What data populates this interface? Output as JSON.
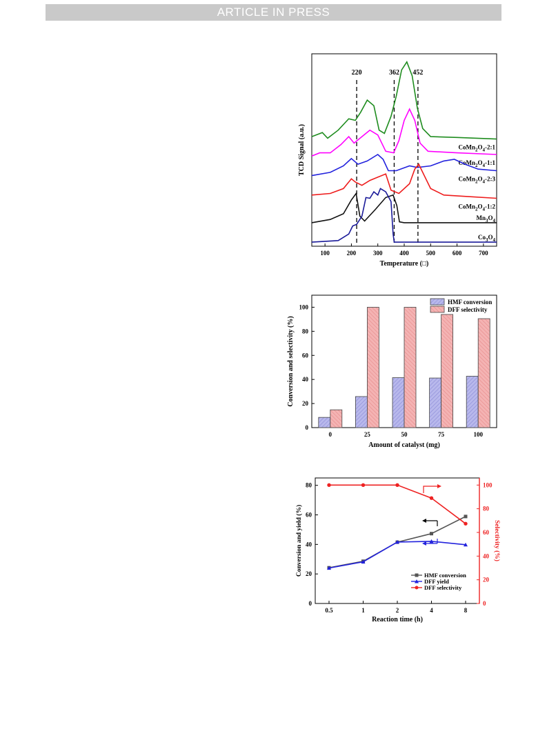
{
  "banner": "ARTICLE IN PRESS",
  "chart_data": [
    {
      "type": "line",
      "ylabel": "TCD Signal (a.u.)",
      "xlabel": "Temperature (□)",
      "xlim": [
        50,
        750
      ],
      "xticks": [
        100,
        200,
        300,
        400,
        500,
        600,
        700
      ],
      "peak_markers": [
        {
          "label": "220",
          "x": 220
        },
        {
          "label": "362",
          "x": 362
        },
        {
          "label": "452",
          "x": 452
        }
      ],
      "series": [
        {
          "name": "CoMn2O4-2:1",
          "label_main": "CoMn",
          "label_sub1": "2",
          "label_mid": "O",
          "label_sub2": "4",
          "label_tail": "-2:1",
          "color": "#1e8c1e",
          "points": [
            [
              50,
              0.8
            ],
            [
              90,
              0.85
            ],
            [
              110,
              0.78
            ],
            [
              150,
              0.88
            ],
            [
              190,
              1.02
            ],
            [
              215,
              1.0
            ],
            [
              235,
              1.1
            ],
            [
              260,
              1.25
            ],
            [
              285,
              1.18
            ],
            [
              305,
              0.88
            ],
            [
              325,
              0.84
            ],
            [
              350,
              1.05
            ],
            [
              370,
              1.3
            ],
            [
              390,
              1.62
            ],
            [
              410,
              1.72
            ],
            [
              430,
              1.55
            ],
            [
              450,
              1.15
            ],
            [
              470,
              0.9
            ],
            [
              500,
              0.8
            ],
            [
              600,
              0.79
            ],
            [
              750,
              0.77
            ]
          ]
        },
        {
          "name": "CoMn2O4-1:1",
          "label_main": "CoMn",
          "label_sub1": "2",
          "label_mid": "O",
          "label_sub2": "4",
          "label_tail": "-1:1",
          "color": "#ff00ff",
          "points": [
            [
              50,
              0.56
            ],
            [
              80,
              0.6
            ],
            [
              120,
              0.6
            ],
            [
              160,
              0.7
            ],
            [
              190,
              0.8
            ],
            [
              210,
              0.72
            ],
            [
              240,
              0.8
            ],
            [
              270,
              0.88
            ],
            [
              300,
              0.82
            ],
            [
              330,
              0.62
            ],
            [
              360,
              0.6
            ],
            [
              380,
              0.75
            ],
            [
              400,
              1.0
            ],
            [
              420,
              1.14
            ],
            [
              440,
              1.0
            ],
            [
              460,
              0.72
            ],
            [
              490,
              0.62
            ],
            [
              600,
              0.6
            ],
            [
              750,
              0.58
            ]
          ]
        },
        {
          "name": "CoMn2O4-2:3",
          "label_main": "CoMn",
          "label_sub1": "2",
          "label_mid": "O",
          "label_sub2": "4",
          "label_tail": "-2:3",
          "color": "#2222dd",
          "points": [
            [
              50,
              0.32
            ],
            [
              120,
              0.36
            ],
            [
              170,
              0.44
            ],
            [
              200,
              0.53
            ],
            [
              225,
              0.46
            ],
            [
              260,
              0.5
            ],
            [
              300,
              0.58
            ],
            [
              320,
              0.52
            ],
            [
              340,
              0.38
            ],
            [
              370,
              0.38
            ],
            [
              420,
              0.44
            ],
            [
              450,
              0.42
            ],
            [
              500,
              0.44
            ],
            [
              550,
              0.5
            ],
            [
              590,
              0.52
            ],
            [
              630,
              0.46
            ],
            [
              680,
              0.4
            ],
            [
              750,
              0.38
            ]
          ]
        },
        {
          "name": "CoMn2O4-1:2",
          "label_main": "CoMn",
          "label_sub1": "2",
          "label_mid": "O",
          "label_sub2": "4",
          "label_tail": "-1:2",
          "color": "#ee1c1c",
          "points": [
            [
              50,
              0.08
            ],
            [
              120,
              0.1
            ],
            [
              170,
              0.16
            ],
            [
              200,
              0.28
            ],
            [
              215,
              0.24
            ],
            [
              240,
              0.2
            ],
            [
              270,
              0.26
            ],
            [
              300,
              0.3
            ],
            [
              330,
              0.34
            ],
            [
              350,
              0.14
            ],
            [
              380,
              0.1
            ],
            [
              420,
              0.22
            ],
            [
              440,
              0.4
            ],
            [
              455,
              0.46
            ],
            [
              470,
              0.36
            ],
            [
              500,
              0.16
            ],
            [
              550,
              0.08
            ],
            [
              650,
              0.06
            ],
            [
              750,
              0.04
            ]
          ]
        },
        {
          "name": "Mn3O4",
          "label_main": "Mn",
          "label_sub1": "3",
          "label_mid": "O",
          "label_sub2": "4",
          "label_tail": "",
          "color": "#111111",
          "points": [
            [
              50,
              -0.26
            ],
            [
              120,
              -0.22
            ],
            [
              170,
              -0.15
            ],
            [
              200,
              0.02
            ],
            [
              218,
              0.1
            ],
            [
              232,
              -0.18
            ],
            [
              250,
              -0.24
            ],
            [
              290,
              -0.1
            ],
            [
              330,
              0.05
            ],
            [
              358,
              0.08
            ],
            [
              372,
              -0.05
            ],
            [
              382,
              -0.25
            ],
            [
              400,
              -0.26
            ],
            [
              750,
              -0.26
            ]
          ]
        },
        {
          "name": "Co3O4",
          "label_main": "Co",
          "label_sub1": "3",
          "label_mid": "O",
          "label_sub2": "4",
          "label_tail": "",
          "color": "#1a1a99",
          "points": [
            [
              50,
              -0.5
            ],
            [
              150,
              -0.48
            ],
            [
              190,
              -0.4
            ],
            [
              205,
              -0.3
            ],
            [
              220,
              -0.28
            ],
            [
              240,
              -0.18
            ],
            [
              255,
              0.05
            ],
            [
              270,
              0.04
            ],
            [
              285,
              0.12
            ],
            [
              300,
              0.08
            ],
            [
              310,
              0.16
            ],
            [
              330,
              0.12
            ],
            [
              350,
              0.0
            ],
            [
              358,
              -0.4
            ],
            [
              362,
              -0.5
            ],
            [
              750,
              -0.5
            ]
          ]
        }
      ]
    },
    {
      "type": "bar",
      "categories": [
        "0",
        "25",
        "50",
        "75",
        "100"
      ],
      "xlabel": "Amount of catalyst (mg)",
      "ylabel": "Conversion and selectivity (%)",
      "ylim": [
        0,
        110
      ],
      "yticks": [
        0,
        20,
        40,
        60,
        80,
        100
      ],
      "legend": "top-right",
      "series": [
        {
          "name": "HMF conversion",
          "values": [
            8.5,
            25.8,
            41.5,
            41.2,
            42.7
          ],
          "color": "#b8b8ec"
        },
        {
          "name": "DFF selectivity",
          "values": [
            14.8,
            100,
            100,
            94,
            90.5
          ],
          "color": "#f4b3b3"
        }
      ]
    },
    {
      "type": "line",
      "categories": [
        "0.5",
        "1",
        "2",
        "4",
        "8"
      ],
      "xlabel": "Reaction time (h)",
      "ylabel_left": "Conversion and yield (%)",
      "ylabel_right": "Selectivity (%)",
      "ylim_left": [
        0,
        85
      ],
      "yticks_left": [
        0,
        20,
        40,
        60,
        80
      ],
      "ylim_right": [
        0,
        106
      ],
      "yticks_right": [
        0,
        20,
        40,
        60,
        80,
        100
      ],
      "legend": "bottom-right",
      "series": [
        {
          "name": "HMF conversion",
          "axis": "left",
          "values": [
            24.2,
            28.6,
            41.5,
            47.3,
            58.9
          ],
          "color": "#555555"
        },
        {
          "name": "DFF yield",
          "axis": "left",
          "values": [
            24.0,
            28.2,
            41.6,
            42.1,
            39.8
          ],
          "color": "#2222dd"
        },
        {
          "name": "DFF selectivity",
          "axis": "right",
          "values": [
            100,
            100,
            100,
            89,
            67.4
          ],
          "color": "#ee2222"
        }
      ]
    }
  ]
}
